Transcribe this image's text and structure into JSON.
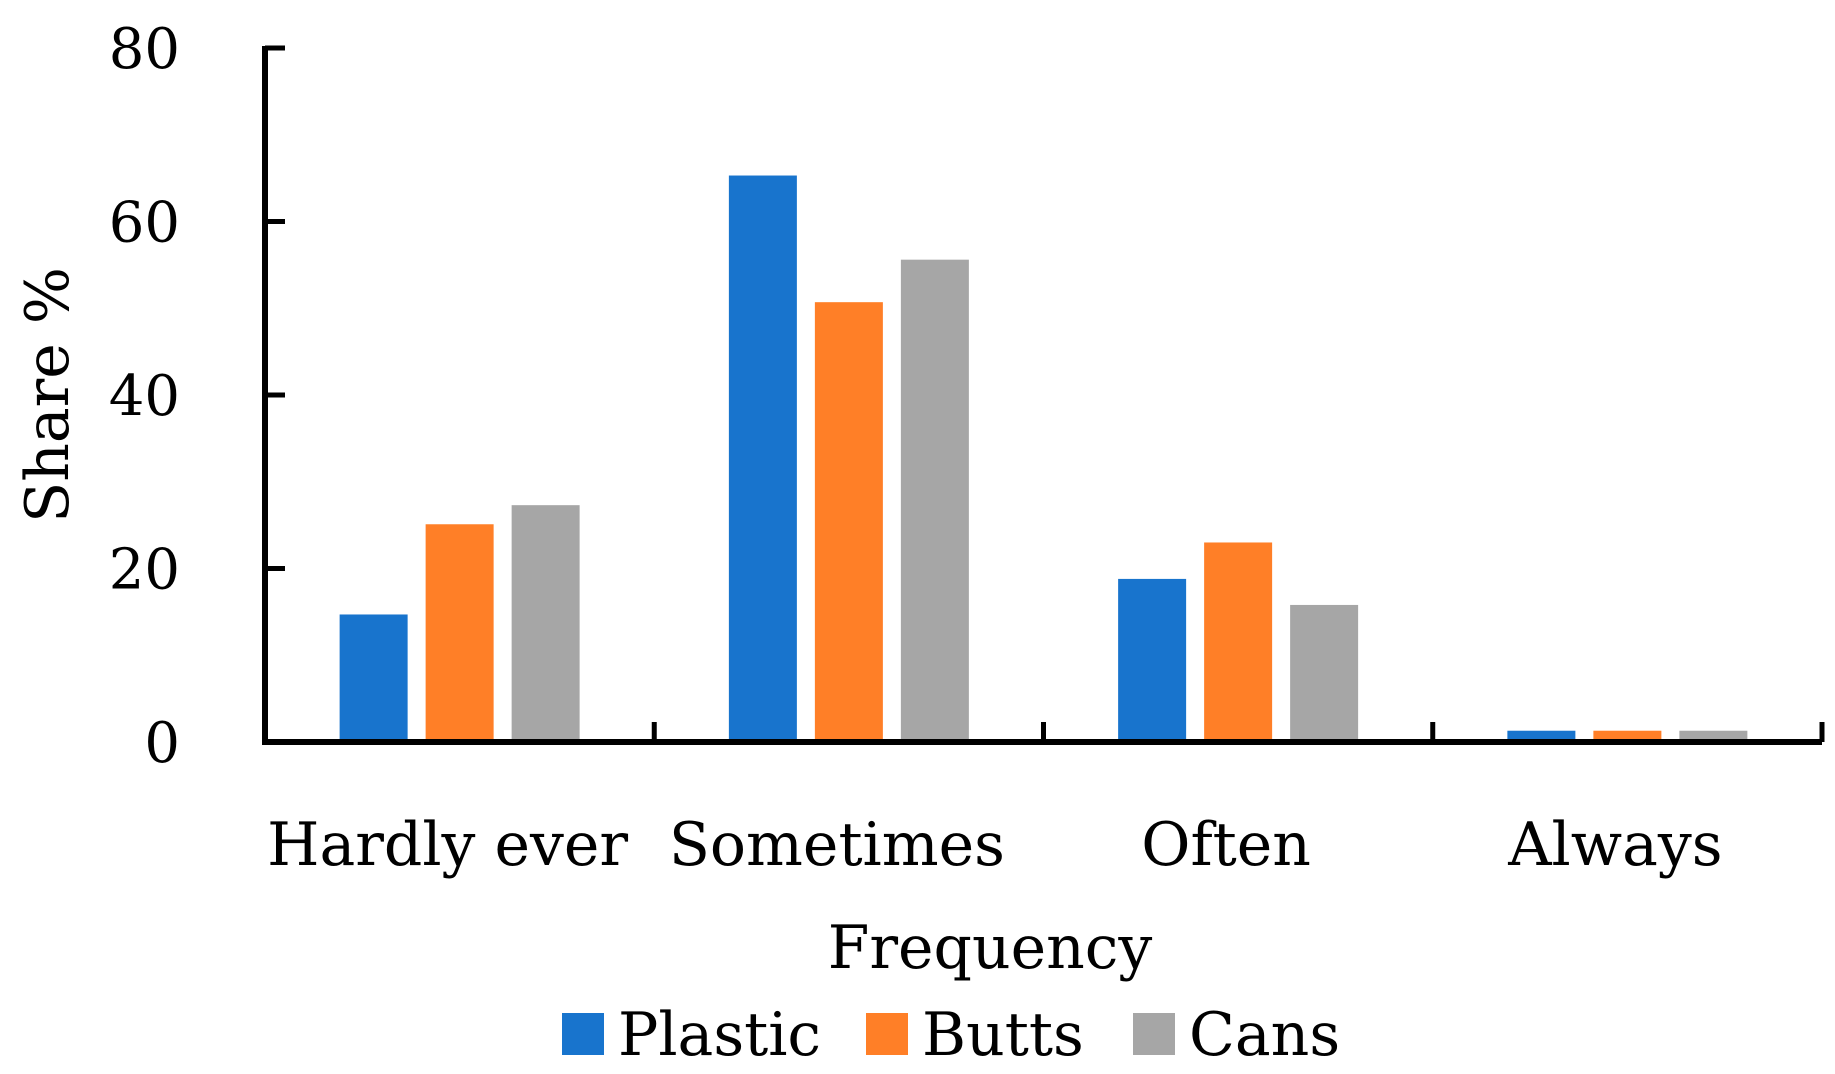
{
  "chart_data": {
    "type": "bar",
    "title": "",
    "xlabel": "Frequency",
    "ylabel": "Share %",
    "ylim": [
      0,
      80
    ],
    "yticks": [
      0,
      20,
      40,
      60,
      80
    ],
    "categories": [
      "Hardly ever",
      "Sometimes",
      "Often",
      "Always"
    ],
    "series": [
      {
        "name": "Plastic",
        "color": "#1874CD",
        "values": [
          14.7,
          65.3,
          18.8,
          1.3
        ]
      },
      {
        "name": "Butts",
        "color": "#FF7F27",
        "values": [
          25.1,
          50.7,
          23.0,
          1.3
        ]
      },
      {
        "name": "Cans",
        "color": "#A6A6A6",
        "values": [
          27.3,
          55.6,
          15.8,
          1.3
        ]
      }
    ],
    "legend_position": "bottom",
    "grid": false
  }
}
